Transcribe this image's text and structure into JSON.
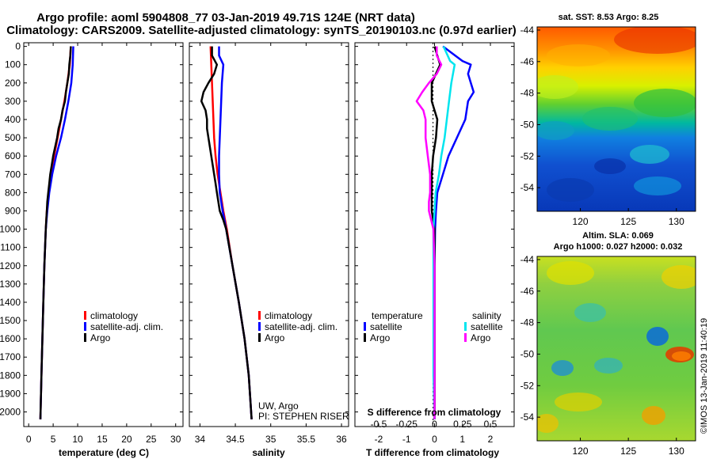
{
  "titles": {
    "line1": "Argo profile: aoml 5904808_77 03-Jan-2019 49.71S 124E (NRT data)",
    "line2": "Climatology: CARS2009. Satellite-adjusted climatology: synTS_20190103.nc (0.97d earlier)"
  },
  "colors": {
    "climatology": "#ff0000",
    "satellite": "#0000ff",
    "argo": "#000000",
    "argo_salinity": "#ff00ff",
    "satellite_salinity": "#00e5ee"
  },
  "chart_data": [
    {
      "type": "line",
      "name": "temperature-panel",
      "xlabel": "temperature (deg C)",
      "ylabel": "",
      "xlim": [
        -1,
        31.5
      ],
      "ylim": [
        2080,
        -20
      ],
      "xticks": [
        "0",
        "5",
        "10",
        "15",
        "20",
        "25",
        "30"
      ],
      "yticks": [
        "0",
        "100",
        "200",
        "300",
        "400",
        "500",
        "600",
        "700",
        "800",
        "900",
        "1000",
        "1100",
        "1200",
        "1300",
        "1400",
        "1500",
        "1600",
        "1700",
        "1800",
        "1900",
        "2000"
      ],
      "legend": [
        "climatology",
        "satellite-adj. clim.",
        "Argo"
      ],
      "series": [
        {
          "name": "climatology",
          "depth": [
            0,
            100,
            200,
            300,
            400,
            500,
            600,
            700,
            800,
            900,
            1000,
            1200,
            1400,
            1600,
            1800,
            2040
          ],
          "values": [
            8.6,
            8.4,
            7.9,
            7.3,
            6.6,
            5.9,
            5.2,
            4.6,
            4.1,
            3.7,
            3.5,
            3.2,
            3.0,
            2.8,
            2.6,
            2.4
          ]
        },
        {
          "name": "satellite-adj. clim.",
          "depth": [
            0,
            100,
            200,
            300,
            400,
            500,
            600,
            700,
            800,
            900,
            1000,
            1200,
            1400,
            1600,
            1800,
            2040
          ],
          "values": [
            9.1,
            9.0,
            8.7,
            8.1,
            7.4,
            6.6,
            5.6,
            4.8,
            4.2,
            3.8,
            3.5,
            3.2,
            3.0,
            2.8,
            2.6,
            2.4
          ]
        },
        {
          "name": "Argo",
          "depth": [
            0,
            50,
            100,
            150,
            200,
            250,
            300,
            350,
            400,
            450,
            500,
            550,
            600,
            650,
            700,
            750,
            800,
            850,
            900,
            950,
            1000,
            1200,
            1400,
            1600,
            1800,
            2040
          ],
          "values": [
            8.6,
            8.5,
            8.3,
            8.2,
            7.9,
            7.6,
            7.4,
            6.9,
            6.6,
            6.1,
            5.8,
            5.4,
            5.0,
            4.7,
            4.4,
            4.2,
            4.0,
            3.8,
            3.7,
            3.6,
            3.5,
            3.2,
            3.0,
            2.8,
            2.6,
            2.4
          ]
        }
      ]
    },
    {
      "type": "line",
      "name": "salinity-panel",
      "xlabel": "salinity",
      "xlim": [
        33.85,
        36.1
      ],
      "ylim": [
        2080,
        -20
      ],
      "xticks": [
        "34",
        "34.5",
        "35",
        "35.5",
        "36"
      ],
      "legend": [
        "climatology",
        "satellite-adj. clim.",
        "Argo"
      ],
      "annotation": [
        "UW, Argo",
        "PI: STEPHEN RISER"
      ],
      "series": [
        {
          "name": "climatology",
          "depth": [
            0,
            100,
            200,
            300,
            400,
            500,
            600,
            700,
            800,
            900,
            1000,
            1200,
            1400,
            1600,
            1800,
            2040
          ],
          "values": [
            34.15,
            34.16,
            34.17,
            34.18,
            34.19,
            34.2,
            34.22,
            34.25,
            34.29,
            34.33,
            34.38,
            34.46,
            34.55,
            34.63,
            34.69,
            34.73
          ]
        },
        {
          "name": "satellite-adj. clim.",
          "depth": [
            0,
            50,
            100,
            200,
            300,
            400,
            500,
            600,
            700,
            800,
            900,
            1000,
            1200,
            1400,
            1600,
            1800,
            2040
          ],
          "values": [
            34.27,
            34.27,
            34.33,
            34.31,
            34.3,
            34.29,
            34.28,
            34.27,
            34.27,
            34.28,
            34.32,
            34.37,
            34.46,
            34.55,
            34.63,
            34.69,
            34.73
          ]
        },
        {
          "name": "Argo",
          "depth": [
            0,
            50,
            100,
            150,
            200,
            250,
            300,
            350,
            400,
            450,
            500,
            550,
            600,
            650,
            700,
            750,
            800,
            850,
            900,
            950,
            1000,
            1200,
            1400,
            1600,
            1800,
            2040
          ],
          "values": [
            34.17,
            34.17,
            34.24,
            34.2,
            34.12,
            34.05,
            34.02,
            34.08,
            34.1,
            34.1,
            34.12,
            34.14,
            34.16,
            34.18,
            34.2,
            34.22,
            34.24,
            34.26,
            34.28,
            34.33,
            34.37,
            34.46,
            34.55,
            34.63,
            34.69,
            34.73
          ]
        }
      ]
    },
    {
      "type": "line",
      "name": "difference-panel",
      "xlabel": "T difference from climatology",
      "top_xlabel": "S difference from climatology",
      "xlim": [
        -2.85,
        2.85
      ],
      "ylim": [
        2080,
        -20
      ],
      "xticks": [
        "-2",
        "-1",
        "0",
        "1",
        "2"
      ],
      "top_xticks": [
        "-0.5",
        "-0.25",
        "0",
        "0.25",
        "0.5"
      ],
      "legend_temperature": {
        "heading": "temperature",
        "items": [
          "satellite",
          "Argo"
        ]
      },
      "legend_salinity": {
        "heading": "salinity",
        "items": [
          "satellite",
          "Argo"
        ]
      },
      "series": [
        {
          "name": "T satellite",
          "depth": [
            0,
            80,
            100,
            150,
            200,
            250,
            300,
            400,
            500,
            600,
            700,
            800,
            900,
            1000,
            1200,
            1400,
            1600,
            1800,
            2040
          ],
          "values": [
            0.3,
            1.0,
            1.3,
            1.2,
            1.3,
            1.4,
            1.2,
            1.1,
            0.8,
            0.5,
            0.3,
            0.1,
            0.05,
            0.02,
            0.0,
            0.0,
            0.0,
            0.0,
            0.0
          ]
        },
        {
          "name": "T Argo",
          "depth": [
            0,
            50,
            100,
            200,
            300,
            400,
            500,
            600,
            700,
            800,
            900,
            1000,
            1200,
            1400,
            1600,
            1800,
            2040
          ],
          "values": [
            0.0,
            0.1,
            0.2,
            -0.1,
            -0.1,
            0.1,
            0.05,
            -0.05,
            -0.1,
            -0.1,
            -0.1,
            0.0,
            0.0,
            0.0,
            0.0,
            0.0,
            0.0
          ]
        },
        {
          "name": "S satellite",
          "depth": [
            0,
            80,
            100,
            200,
            300,
            400,
            500,
            600,
            700,
            800,
            900,
            1000,
            1200,
            1400,
            1600,
            1800,
            2040
          ],
          "values": [
            0.08,
            0.14,
            0.18,
            0.15,
            0.13,
            0.11,
            0.09,
            0.06,
            0.04,
            0.01,
            0.0,
            -0.01,
            -0.01,
            -0.01,
            -0.01,
            -0.01,
            0.0
          ]
        },
        {
          "name": "S Argo",
          "depth": [
            0,
            50,
            100,
            150,
            200,
            250,
            300,
            350,
            400,
            500,
            600,
            700,
            800,
            850,
            900,
            1000,
            1200,
            1400,
            1600,
            1800,
            2040
          ],
          "values": [
            0.02,
            0.02,
            0.06,
            0.02,
            -0.05,
            -0.11,
            -0.16,
            -0.1,
            -0.08,
            -0.08,
            -0.06,
            -0.04,
            -0.04,
            -0.05,
            -0.05,
            -0.01,
            0.0,
            0.0,
            0.0,
            0.0,
            0.0
          ]
        }
      ]
    },
    {
      "type": "heatmap",
      "name": "sst-map",
      "title": "sat. SST: 8.53 Argo: 8.25",
      "xticks": [
        "120",
        "125",
        "130"
      ],
      "yticks": [
        "-44",
        "-46",
        "-48",
        "-50",
        "-52",
        "-54"
      ],
      "xlim": [
        115.5,
        132
      ],
      "ylim": [
        -55.5,
        -43.8
      ]
    },
    {
      "type": "heatmap",
      "name": "sla-map",
      "title_line1": "Altim. SLA: 0.069",
      "title_line2": "Argo h1000: 0.027 h2000: 0.032",
      "xticks": [
        "120",
        "125",
        "130"
      ],
      "yticks": [
        "-44",
        "-46",
        "-48",
        "-50",
        "-52",
        "-54"
      ],
      "xlim": [
        115.5,
        132
      ],
      "ylim": [
        -55.5,
        -43.8
      ]
    }
  ],
  "credit": "©IMOS 13-Jan-2019 11:40:19"
}
